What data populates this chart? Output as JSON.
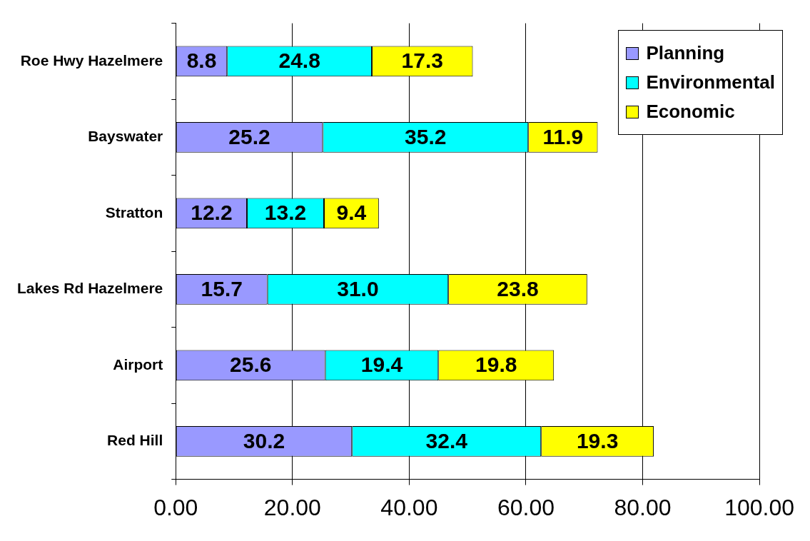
{
  "chart_data": {
    "type": "bar",
    "orientation": "horizontal",
    "stacked": true,
    "grid": "x",
    "legend": "top right",
    "categories": [
      "Roe Hwy Hazelmere",
      "Bayswater",
      "Stratton",
      "Lakes Rd Hazelmere",
      "Airport",
      "Red Hill"
    ],
    "series": [
      {
        "name": "Planning",
        "color": "#9999ff",
        "values": [
          8.8,
          25.2,
          12.2,
          15.7,
          25.6,
          30.2
        ],
        "value_labels": [
          "8.8",
          "25.2",
          "12.2",
          "15.7",
          "25.6",
          "30.2"
        ]
      },
      {
        "name": "Environmental",
        "color": "#00ffff",
        "values": [
          24.8,
          35.2,
          13.2,
          31.0,
          19.4,
          32.4
        ],
        "value_labels": [
          "24.8",
          "35.2",
          "13.2",
          "31.0",
          "19.4",
          "32.4"
        ]
      },
      {
        "name": "Economic",
        "color": "#ffff00",
        "values": [
          17.3,
          11.9,
          9.4,
          23.8,
          19.8,
          19.3
        ],
        "value_labels": [
          "17.3",
          "11.9",
          "9.4",
          "23.8",
          "19.8",
          "19.3"
        ]
      }
    ],
    "xlim": [
      0,
      100
    ],
    "xticks": [
      {
        "value": 0,
        "label": "0.00"
      },
      {
        "value": 20,
        "label": "20.00"
      },
      {
        "value": 40,
        "label": "40.00"
      },
      {
        "value": 60,
        "label": "60.00"
      },
      {
        "value": 80,
        "label": "80.00"
      },
      {
        "value": 100,
        "label": "100.00"
      }
    ]
  }
}
